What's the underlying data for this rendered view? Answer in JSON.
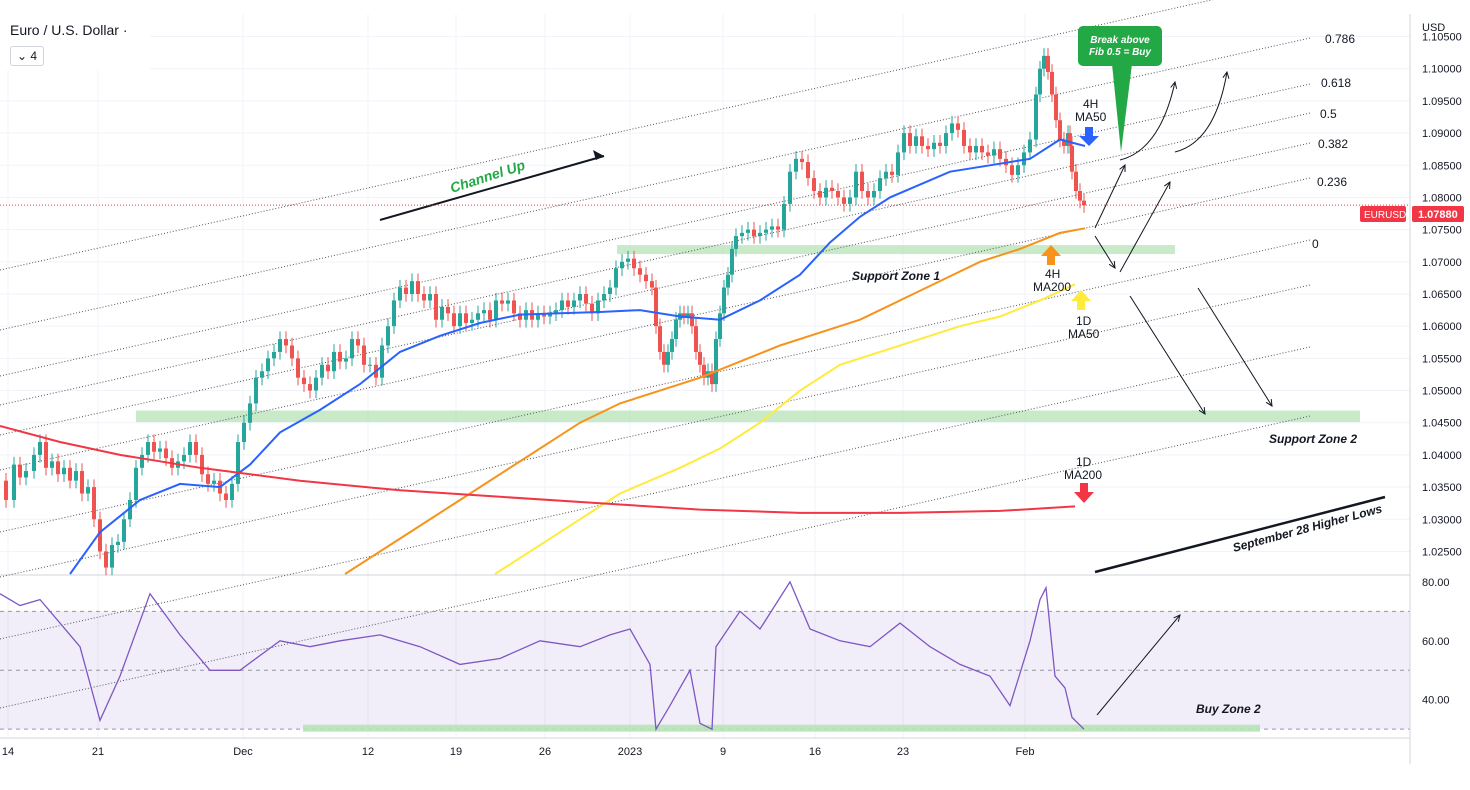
{
  "header": {
    "symbol": "Euro / U.S. Dollar ·",
    "interval": "4",
    "interval_chevron": "chevron-down-icon"
  },
  "price_axis": {
    "currency": "USD",
    "ticks": [
      "1.10500",
      "1.10000",
      "1.09500",
      "1.09000",
      "1.08500",
      "1.08000",
      "1.07500",
      "1.07000",
      "1.06500",
      "1.06000",
      "1.05500",
      "1.05000",
      "1.04500",
      "1.04000",
      "1.03500",
      "1.03000",
      "1.02500"
    ],
    "last_price_symbol": "EURUSD",
    "last_price": "1.07880",
    "last_price_color": "#f23645"
  },
  "rsi_axis": {
    "ticks": [
      "80.00",
      "60.00",
      "40.00"
    ]
  },
  "time_axis": {
    "ticks": [
      "14",
      "21",
      "Dec",
      "12",
      "19",
      "26",
      "2023",
      "9",
      "16",
      "23",
      "Feb"
    ]
  },
  "fib_levels": [
    "0.786",
    "0.618",
    "0.5",
    "0.382",
    "0.236",
    "0"
  ],
  "annotations": {
    "channel_up": "Channel Up",
    "support_zone_1": "Support Zone 1",
    "support_zone_2": "Support Zone 2",
    "higher_lows": "September 28 Higher Lows",
    "buy_zone_2": "Buy Zone 2",
    "callout_line1": "Break above",
    "callout_line2": "Fib 0.5 = Buy",
    "ma50_4h_l1": "4H",
    "ma50_4h_l2": "MA50",
    "ma200_4h_l1": "4H",
    "ma200_4h_l2": "MA200",
    "ma50_1d_l1": "1D",
    "ma50_1d_l2": "MA50",
    "ma200_1d_l1": "1D",
    "ma200_1d_l2": "MA200"
  },
  "colors": {
    "bull": "#26a69a",
    "bear": "#ef5350",
    "ma50_4h": "#2962ff",
    "ma200_4h": "#f7931a",
    "ma50_1d": "#ffeb3b",
    "ma200_1d": "#f23645",
    "support": "#b6e3b6",
    "rsi": "#7e57c2",
    "callout": "#22a845"
  },
  "chart_data": {
    "type": "candlestick",
    "symbol": "EURUSD",
    "timeframe": "4H",
    "y_range": [
      1.0215,
      1.1085
    ],
    "rsi_range": [
      27,
      82
    ],
    "last_close": 1.0788,
    "fib_channel": {
      "levels": [
        0,
        0.236,
        0.382,
        0.5,
        0.618,
        0.786,
        1
      ]
    },
    "support_zones": [
      {
        "name": "Support Zone 1",
        "low": 1.0712,
        "high": 1.0726
      },
      {
        "name": "Support Zone 2",
        "low": 1.0451,
        "high": 1.0469
      }
    ],
    "rsi_buy_zone": {
      "name": "Buy Zone 2",
      "low": 29,
      "high": 30.5
    },
    "close_path": [
      [
        0,
        1.036
      ],
      [
        6,
        1.033
      ],
      [
        14,
        1.0385
      ],
      [
        20,
        1.0365
      ],
      [
        26,
        1.0375
      ],
      [
        34,
        1.04
      ],
      [
        40,
        1.042
      ],
      [
        46,
        1.038
      ],
      [
        52,
        1.039
      ],
      [
        58,
        1.037
      ],
      [
        64,
        1.038
      ],
      [
        70,
        1.036
      ],
      [
        76,
        1.0375
      ],
      [
        82,
        1.034
      ],
      [
        88,
        1.035
      ],
      [
        94,
        1.03
      ],
      [
        100,
        1.025
      ],
      [
        106,
        1.0225
      ],
      [
        112,
        1.026
      ],
      [
        118,
        1.0265
      ],
      [
        124,
        1.03
      ],
      [
        130,
        1.033
      ],
      [
        136,
        1.038
      ],
      [
        142,
        1.04
      ],
      [
        148,
        1.042
      ],
      [
        154,
        1.0405
      ],
      [
        160,
        1.041
      ],
      [
        166,
        1.0395
      ],
      [
        172,
        1.038
      ],
      [
        178,
        1.039
      ],
      [
        184,
        1.04
      ],
      [
        190,
        1.042
      ],
      [
        196,
        1.04
      ],
      [
        202,
        1.037
      ],
      [
        208,
        1.0355
      ],
      [
        214,
        1.036
      ],
      [
        220,
        1.034
      ],
      [
        226,
        1.033
      ],
      [
        232,
        1.0355
      ],
      [
        238,
        1.042
      ],
      [
        244,
        1.045
      ],
      [
        250,
        1.048
      ],
      [
        256,
        1.052
      ],
      [
        262,
        1.053
      ],
      [
        268,
        1.055
      ],
      [
        274,
        1.056
      ],
      [
        280,
        1.058
      ],
      [
        286,
        1.057
      ],
      [
        292,
        1.055
      ],
      [
        298,
        1.052
      ],
      [
        304,
        1.051
      ],
      [
        310,
        1.05
      ],
      [
        316,
        1.052
      ],
      [
        322,
        1.054
      ],
      [
        328,
        1.053
      ],
      [
        334,
        1.056
      ],
      [
        340,
        1.0545
      ],
      [
        346,
        1.055
      ],
      [
        352,
        1.058
      ],
      [
        358,
        1.057
      ],
      [
        364,
        1.054
      ],
      [
        370,
        1.054
      ],
      [
        376,
        1.052
      ],
      [
        382,
        1.057
      ],
      [
        388,
        1.06
      ],
      [
        394,
        1.064
      ],
      [
        400,
        1.066
      ],
      [
        406,
        1.065
      ],
      [
        412,
        1.067
      ],
      [
        418,
        1.065
      ],
      [
        424,
        1.064
      ],
      [
        430,
        1.065
      ],
      [
        436,
        1.061
      ],
      [
        442,
        1.063
      ],
      [
        448,
        1.062
      ],
      [
        454,
        1.06
      ],
      [
        460,
        1.062
      ],
      [
        466,
        1.0605
      ],
      [
        472,
        1.061
      ],
      [
        478,
        1.062
      ],
      [
        484,
        1.0625
      ],
      [
        490,
        1.061
      ],
      [
        496,
        1.064
      ],
      [
        502,
        1.0635
      ],
      [
        508,
        1.064
      ],
      [
        514,
        1.062
      ],
      [
        520,
        1.061
      ],
      [
        526,
        1.0625
      ],
      [
        532,
        1.061
      ],
      [
        538,
        1.062
      ],
      [
        544,
        1.0615
      ],
      [
        550,
        1.062
      ],
      [
        556,
        1.0625
      ],
      [
        562,
        1.064
      ],
      [
        568,
        1.063
      ],
      [
        574,
        1.064
      ],
      [
        580,
        1.065
      ],
      [
        586,
        1.0635
      ],
      [
        592,
        1.062
      ],
      [
        598,
        1.064
      ],
      [
        604,
        1.065
      ],
      [
        610,
        1.066
      ],
      [
        616,
        1.069
      ],
      [
        622,
        1.07
      ],
      [
        628,
        1.0705
      ],
      [
        634,
        1.069
      ],
      [
        640,
        1.068
      ],
      [
        646,
        1.067
      ],
      [
        652,
        1.066
      ],
      [
        656,
        1.06
      ],
      [
        660,
        1.056
      ],
      [
        664,
        1.054
      ],
      [
        668,
        1.056
      ],
      [
        672,
        1.058
      ],
      [
        676,
        1.061
      ],
      [
        680,
        1.062
      ],
      [
        684,
        1.0615
      ],
      [
        688,
        1.062
      ],
      [
        692,
        1.06
      ],
      [
        696,
        1.056
      ],
      [
        700,
        1.054
      ],
      [
        704,
        1.052
      ],
      [
        708,
        1.053
      ],
      [
        712,
        1.051
      ],
      [
        716,
        1.058
      ],
      [
        720,
        1.062
      ],
      [
        724,
        1.066
      ],
      [
        728,
        1.068
      ],
      [
        732,
        1.072
      ],
      [
        736,
        1.074
      ],
      [
        742,
        1.0745
      ],
      [
        748,
        1.075
      ],
      [
        754,
        1.074
      ],
      [
        760,
        1.0745
      ],
      [
        766,
        1.075
      ],
      [
        772,
        1.0755
      ],
      [
        778,
        1.075
      ],
      [
        784,
        1.079
      ],
      [
        790,
        1.084
      ],
      [
        796,
        1.086
      ],
      [
        802,
        1.0855
      ],
      [
        808,
        1.083
      ],
      [
        814,
        1.081
      ],
      [
        820,
        1.08
      ],
      [
        826,
        1.0815
      ],
      [
        832,
        1.081
      ],
      [
        838,
        1.08
      ],
      [
        844,
        1.079
      ],
      [
        850,
        1.08
      ],
      [
        856,
        1.084
      ],
      [
        862,
        1.081
      ],
      [
        868,
        1.08
      ],
      [
        874,
        1.081
      ],
      [
        880,
        1.083
      ],
      [
        886,
        1.084
      ],
      [
        892,
        1.0835
      ],
      [
        898,
        1.087
      ],
      [
        904,
        1.09
      ],
      [
        910,
        1.088
      ],
      [
        916,
        1.0895
      ],
      [
        922,
        1.088
      ],
      [
        928,
        1.0875
      ],
      [
        934,
        1.0885
      ],
      [
        940,
        1.088
      ],
      [
        946,
        1.09
      ],
      [
        952,
        1.0915
      ],
      [
        958,
        1.0905
      ],
      [
        964,
        1.088
      ],
      [
        970,
        1.087
      ],
      [
        976,
        1.088
      ],
      [
        982,
        1.087
      ],
      [
        988,
        1.0865
      ],
      [
        994,
        1.0875
      ],
      [
        1000,
        1.086
      ],
      [
        1006,
        1.085
      ],
      [
        1012,
        1.0835
      ],
      [
        1018,
        1.085
      ],
      [
        1024,
        1.087
      ],
      [
        1030,
        1.089
      ],
      [
        1036,
        1.096
      ],
      [
        1040,
        1.1
      ],
      [
        1044,
        1.102
      ],
      [
        1048,
        1.0995
      ],
      [
        1052,
        1.096
      ],
      [
        1056,
        1.092
      ],
      [
        1060,
        1.089
      ],
      [
        1064,
        1.088
      ],
      [
        1068,
        1.09
      ],
      [
        1070,
        1.088
      ],
      [
        1072,
        1.084
      ],
      [
        1076,
        1.081
      ],
      [
        1080,
        1.0795
      ],
      [
        1084,
        1.0788
      ]
    ],
    "moving_averages": [
      {
        "name": "4H MA50",
        "points": [
          [
            70,
            1.0215
          ],
          [
            100,
            1.028
          ],
          [
            140,
            1.033
          ],
          [
            180,
            1.0355
          ],
          [
            220,
            1.035
          ],
          [
            250,
            1.0385
          ],
          [
            280,
            1.0435
          ],
          [
            320,
            1.047
          ],
          [
            360,
            1.051
          ],
          [
            400,
            1.056
          ],
          [
            440,
            1.0585
          ],
          [
            480,
            1.0605
          ],
          [
            520,
            1.0618
          ],
          [
            560,
            1.062
          ],
          [
            600,
            1.0622
          ],
          [
            640,
            1.0625
          ],
          [
            680,
            1.0615
          ],
          [
            720,
            1.061
          ],
          [
            760,
            1.064
          ],
          [
            800,
            1.068
          ],
          [
            830,
            1.073
          ],
          [
            860,
            1.077
          ],
          [
            890,
            1.08
          ],
          [
            920,
            1.082
          ],
          [
            950,
            1.084
          ],
          [
            990,
            1.085
          ],
          [
            1030,
            1.086
          ],
          [
            1060,
            1.089
          ],
          [
            1085,
            1.088
          ]
        ]
      },
      {
        "name": "4H MA200",
        "points": [
          [
            345,
            1.0215
          ],
          [
            400,
            1.027
          ],
          [
            460,
            1.033
          ],
          [
            520,
            1.039
          ],
          [
            580,
            1.045
          ],
          [
            620,
            1.048
          ],
          [
            660,
            1.05
          ],
          [
            700,
            1.052
          ],
          [
            740,
            1.0545
          ],
          [
            780,
            1.057
          ],
          [
            820,
            1.059
          ],
          [
            860,
            1.061
          ],
          [
            900,
            1.064
          ],
          [
            940,
            1.067
          ],
          [
            980,
            1.07
          ],
          [
            1020,
            1.072
          ],
          [
            1060,
            1.0745
          ],
          [
            1085,
            1.0752
          ]
        ]
      },
      {
        "name": "1D MA50",
        "points": [
          [
            495,
            1.0215
          ],
          [
            560,
            1.028
          ],
          [
            620,
            1.034
          ],
          [
            680,
            1.038
          ],
          [
            720,
            1.041
          ],
          [
            760,
            1.045
          ],
          [
            800,
            1.05
          ],
          [
            840,
            1.054
          ],
          [
            880,
            1.056
          ],
          [
            920,
            1.058
          ],
          [
            960,
            1.06
          ],
          [
            1000,
            1.0615
          ],
          [
            1040,
            1.064
          ],
          [
            1075,
            1.0665
          ]
        ]
      },
      {
        "name": "1D MA200",
        "points": [
          [
            0,
            1.0445
          ],
          [
            60,
            1.042
          ],
          [
            120,
            1.04
          ],
          [
            200,
            1.038
          ],
          [
            300,
            1.036
          ],
          [
            400,
            1.0345
          ],
          [
            500,
            1.0335
          ],
          [
            600,
            1.0325
          ],
          [
            700,
            1.0315
          ],
          [
            800,
            1.031
          ],
          [
            900,
            1.031
          ],
          [
            1000,
            1.0313
          ],
          [
            1075,
            1.032
          ]
        ]
      }
    ],
    "rsi_path": [
      [
        0,
        76
      ],
      [
        20,
        72
      ],
      [
        40,
        74
      ],
      [
        60,
        66
      ],
      [
        80,
        58
      ],
      [
        100,
        33
      ],
      [
        120,
        48
      ],
      [
        150,
        76
      ],
      [
        180,
        62
      ],
      [
        210,
        50
      ],
      [
        240,
        50
      ],
      [
        280,
        60
      ],
      [
        310,
        58
      ],
      [
        340,
        60
      ],
      [
        380,
        62
      ],
      [
        420,
        58
      ],
      [
        460,
        52
      ],
      [
        500,
        54
      ],
      [
        540,
        60
      ],
      [
        580,
        58
      ],
      [
        610,
        62
      ],
      [
        630,
        64
      ],
      [
        650,
        52
      ],
      [
        656,
        30
      ],
      [
        670,
        38
      ],
      [
        690,
        50
      ],
      [
        700,
        32
      ],
      [
        712,
        30
      ],
      [
        716,
        58
      ],
      [
        740,
        70
      ],
      [
        760,
        64
      ],
      [
        790,
        80
      ],
      [
        810,
        64
      ],
      [
        840,
        60
      ],
      [
        870,
        58
      ],
      [
        900,
        66
      ],
      [
        930,
        58
      ],
      [
        960,
        52
      ],
      [
        990,
        48
      ],
      [
        1010,
        38
      ],
      [
        1030,
        60
      ],
      [
        1040,
        74
      ],
      [
        1046,
        78
      ],
      [
        1055,
        48
      ],
      [
        1065,
        44
      ],
      [
        1072,
        34
      ],
      [
        1084,
        30
      ]
    ]
  }
}
